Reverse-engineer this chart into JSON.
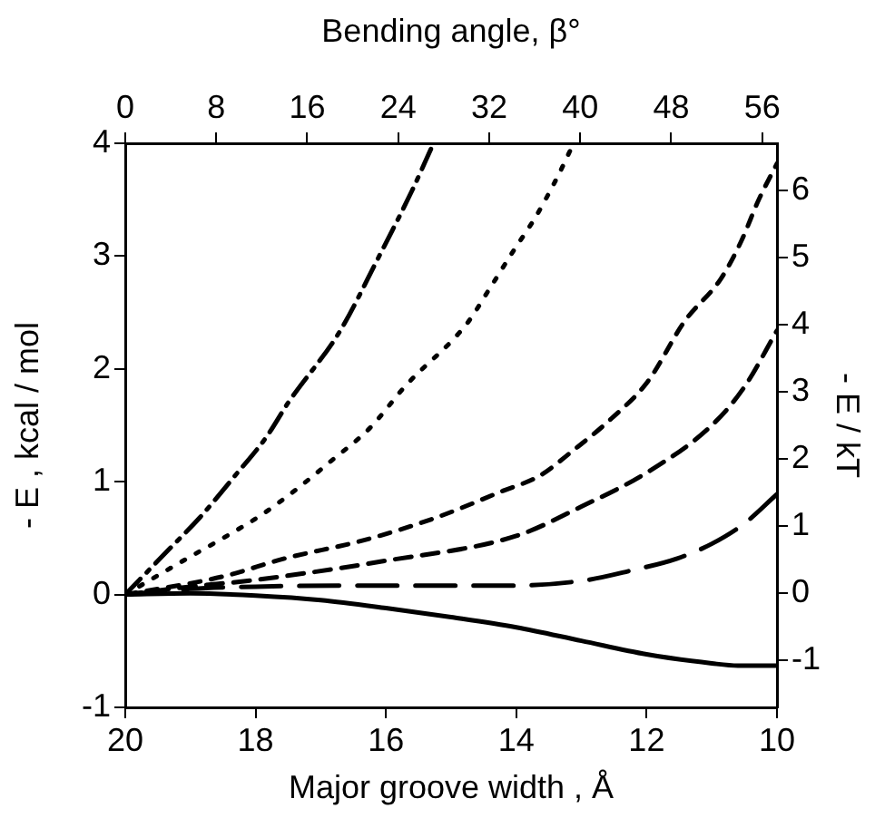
{
  "chart_data": {
    "type": "line",
    "xlabel": "Major groove width , Å",
    "ylabel": "- E , kcal / mol",
    "y2label": "- E / kT",
    "x2label": "Bending angle, β°",
    "xlim": [
      20,
      10
    ],
    "xticks": [
      20,
      18,
      16,
      14,
      12,
      10
    ],
    "ylim": [
      -1,
      4
    ],
    "yticks": [
      -1,
      0,
      1,
      2,
      3,
      4
    ],
    "x2lim": [
      0,
      57.3
    ],
    "x2ticks": [
      0,
      8,
      16,
      24,
      32,
      40,
      48,
      56
    ],
    "y2lim": [
      -1.7,
      6.7
    ],
    "y2ticks": [
      -1,
      0,
      1,
      2,
      3,
      4,
      5,
      6
    ],
    "grid": false,
    "marker": "none",
    "series": [
      {
        "color": "#000000",
        "line_style": "solid",
        "x": [
          20,
          19,
          18,
          17,
          16,
          15,
          14,
          13,
          12,
          11,
          10.6,
          10
        ],
        "values": [
          0,
          0.01,
          -0.01,
          -0.05,
          -0.12,
          -0.2,
          -0.29,
          -0.41,
          -0.53,
          -0.61,
          -0.63,
          -0.63
        ]
      },
      {
        "color": "#000000",
        "line_style": "longdash",
        "x": [
          20,
          19,
          18,
          16,
          14,
          12.9,
          12.26,
          11.53,
          11,
          10.5,
          10
        ],
        "values": [
          0,
          0.05,
          0.07,
          0.08,
          0.08,
          0.13,
          0.21,
          0.32,
          0.45,
          0.63,
          0.89
        ]
      },
      {
        "color": "#000000",
        "line_style": "dashed",
        "x": [
          20,
          19,
          18,
          16,
          14,
          13,
          12,
          11,
          10.5,
          10
        ],
        "values": [
          0,
          0.07,
          0.13,
          0.3,
          0.52,
          0.78,
          1.08,
          1.5,
          1.84,
          2.34
        ]
      },
      {
        "color": "#000000",
        "line_style": "shortdash",
        "x": [
          20,
          18.5,
          17.55,
          16.35,
          15.24,
          14.2,
          13.65,
          13.1,
          12.54,
          11.98,
          11.42,
          10.86,
          10.55,
          10.28,
          10
        ],
        "values": [
          0,
          0.16,
          0.32,
          0.48,
          0.68,
          0.92,
          1.05,
          1.29,
          1.56,
          1.89,
          2.42,
          2.8,
          3.13,
          3.5,
          3.82
        ]
      },
      {
        "color": "#000000",
        "line_style": "dotted",
        "x": [
          20,
          19.05,
          18.5,
          17.9,
          17.38,
          16.85,
          16.24,
          15.7,
          14.76,
          14.4,
          14.04,
          13.7,
          13.37,
          13.12
        ],
        "values": [
          0,
          0.32,
          0.5,
          0.71,
          0.93,
          1.18,
          1.48,
          1.85,
          2.4,
          2.72,
          3.05,
          3.35,
          3.7,
          4
        ]
      },
      {
        "color": "#000000",
        "line_style": "dashdot",
        "x": [
          20,
          19.33,
          18.86,
          18.35,
          17.83,
          17.5,
          16.7,
          16.13,
          15.6,
          15.27
        ],
        "values": [
          0,
          0.4,
          0.68,
          1.03,
          1.4,
          1.7,
          2.34,
          2.97,
          3.58,
          4
        ]
      }
    ]
  }
}
